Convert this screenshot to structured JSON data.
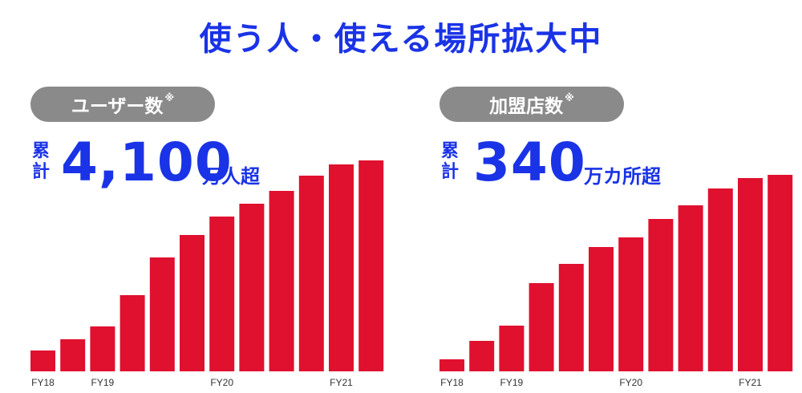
{
  "title": "使う人・使える場所拡大中",
  "colors": {
    "accent": "#1a33e6",
    "bar": "#e0102f",
    "pill": "#8a8a8a"
  },
  "chart_data": [
    {
      "type": "bar",
      "pill_label": "ユーザー数",
      "note_mark": "※",
      "prefix": [
        "累",
        "計"
      ],
      "headline_value": "4,100",
      "unit": "万人超",
      "categories": [
        "",
        "",
        "",
        "",
        "",
        "",
        "",
        "",
        "",
        "",
        "",
        ""
      ],
      "tick_labels": [
        {
          "index": 0,
          "text": "FY18"
        },
        {
          "index": 2,
          "text": "FY19"
        },
        {
          "index": 6,
          "text": "FY20"
        },
        {
          "index": 10,
          "text": "FY21"
        }
      ],
      "values": [
        26,
        40,
        56,
        95,
        142,
        170,
        193,
        209,
        225,
        244,
        258,
        263
      ],
      "ylim": [
        0,
        270
      ]
    },
    {
      "type": "bar",
      "pill_label": "加盟店数",
      "note_mark": "※",
      "prefix": [
        "累",
        "計"
      ],
      "headline_value": "340",
      "unit": "万カ所超",
      "categories": [
        "",
        "",
        "",
        "",
        "",
        "",
        "",
        "",
        "",
        "",
        "",
        ""
      ],
      "tick_labels": [
        {
          "index": 0,
          "text": "FY18"
        },
        {
          "index": 2,
          "text": "FY19"
        },
        {
          "index": 6,
          "text": "FY20"
        },
        {
          "index": 10,
          "text": "FY21"
        }
      ],
      "values": [
        15,
        38,
        57,
        110,
        134,
        155,
        167,
        190,
        207,
        228,
        241,
        245
      ],
      "ylim": [
        0,
        270
      ]
    }
  ]
}
